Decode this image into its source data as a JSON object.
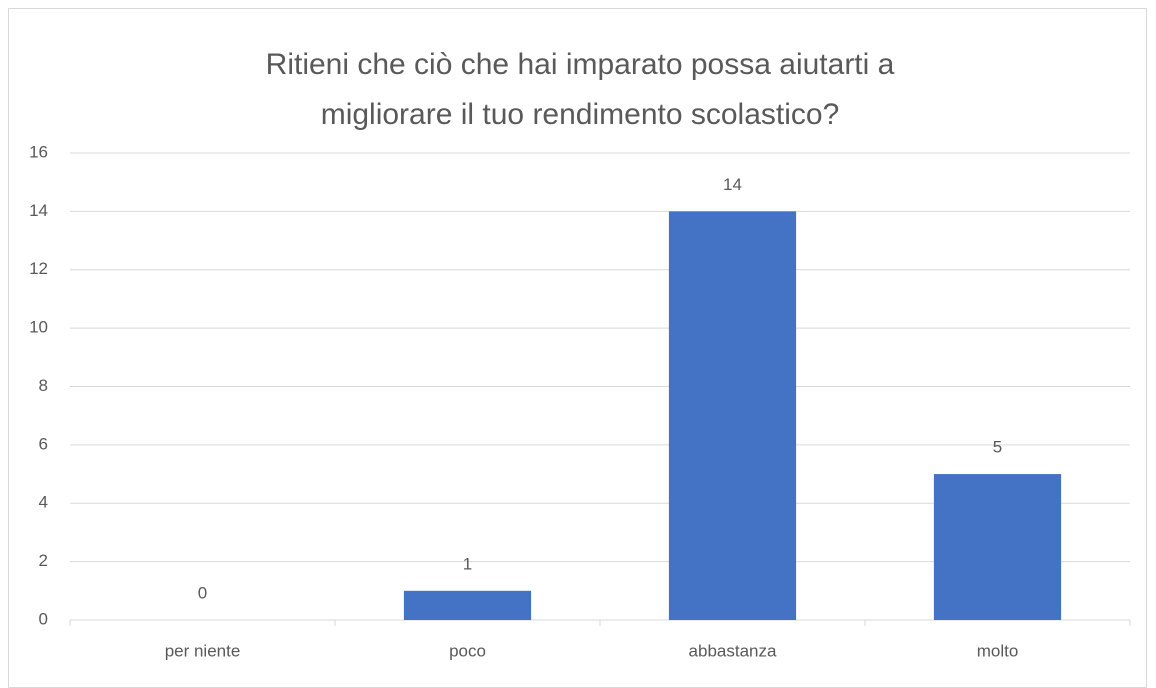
{
  "chart_data": {
    "type": "bar",
    "title": "Ritieni che ciò che hai imparato possa aiutarti a migliorare il tuo rendimento scolastico?",
    "categories": [
      "per niente",
      "poco",
      "abbastanza",
      "molto"
    ],
    "values": [
      0,
      1,
      14,
      5
    ],
    "color": "#4472c4",
    "ylim": [
      0,
      16
    ],
    "yticks": [
      0,
      2,
      4,
      6,
      8,
      10,
      12,
      14,
      16
    ],
    "grid": true
  }
}
